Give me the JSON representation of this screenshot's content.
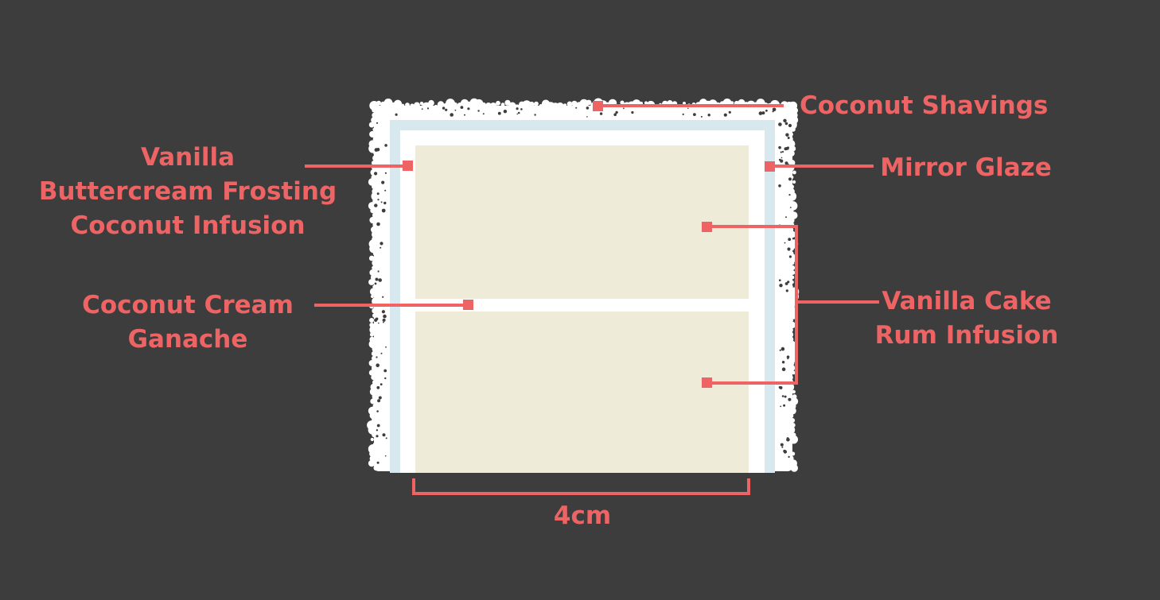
{
  "diagram": {
    "labels": {
      "coconut_shavings": "Coconut Shavings",
      "mirror_glaze": "Mirror Glaze",
      "frosting_line1": "Vanilla",
      "frosting_line2": "Buttercream Frosting",
      "frosting_line3": "Coconut Infusion",
      "ganache_line1": "Coconut Cream",
      "ganache_line2": "Ganache",
      "cake_line1": "Vanilla Cake",
      "cake_line2": "Rum Infusion",
      "width": "4cm"
    },
    "colors": {
      "background": "#3d3d3d",
      "accent": "#ee6464",
      "shavings": "#ffffff",
      "glaze": "#d7e9ee",
      "frosting": "#ffffff",
      "cake": "#eeecd9",
      "ganache": "#ffffff"
    }
  }
}
